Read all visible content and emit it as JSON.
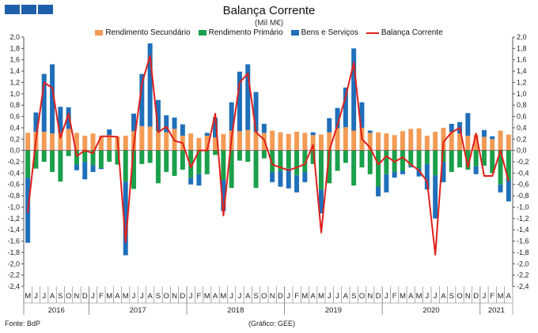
{
  "header": {
    "title": "Balança Corrente",
    "subtitle": "(Mil M€)"
  },
  "footer": {
    "source": "Fonte: BdP",
    "credit": "(Gráfico: GEE)"
  },
  "colors": {
    "secundario": "#f39b55",
    "primario": "#1aa04a",
    "bens": "#1f6fb9",
    "corrente": "#e0201b"
  },
  "chart_data": {
    "type": "bar",
    "stacked": true,
    "title": "Balança Corrente",
    "subtitle": "(Mil M€)",
    "ylim": [
      -2.4,
      2.0
    ],
    "ytick_step": 0.2,
    "legend_position": "top",
    "grid": false,
    "years": [
      {
        "label": "2016",
        "start": 0,
        "count": 8
      },
      {
        "label": "2017",
        "start": 8,
        "count": 12
      },
      {
        "label": "2018",
        "start": 20,
        "count": 12
      },
      {
        "label": "2019",
        "start": 32,
        "count": 12
      },
      {
        "label": "2020",
        "start": 44,
        "count": 12
      },
      {
        "label": "2021",
        "start": 56,
        "count": 4
      }
    ],
    "categories": [
      "M",
      "J",
      "J",
      "A",
      "S",
      "O",
      "N",
      "D",
      "J",
      "F",
      "M",
      "A",
      "M",
      "J",
      "J",
      "A",
      "S",
      "O",
      "N",
      "D",
      "J",
      "F",
      "M",
      "A",
      "M",
      "J",
      "J",
      "A",
      "S",
      "O",
      "N",
      "D",
      "J",
      "F",
      "M",
      "A",
      "M",
      "J",
      "J",
      "A",
      "S",
      "O",
      "N",
      "D",
      "J",
      "F",
      "M",
      "A",
      "M",
      "J",
      "J",
      "A",
      "S",
      "O",
      "N",
      "D",
      "J",
      "F",
      "M",
      "A"
    ],
    "series": [
      {
        "name": "Rendimento Secundário",
        "color": "#f39b55",
        "values": [
          0.31,
          0.33,
          0.33,
          0.3,
          0.31,
          0.38,
          0.31,
          0.26,
          0.3,
          0.26,
          0.27,
          0.25,
          0.26,
          0.34,
          0.43,
          0.42,
          0.34,
          0.32,
          0.38,
          0.26,
          0.3,
          0.22,
          0.26,
          0.23,
          0.29,
          0.35,
          0.34,
          0.36,
          0.33,
          0.31,
          0.35,
          0.32,
          0.29,
          0.33,
          0.31,
          0.27,
          0.28,
          0.32,
          0.39,
          0.41,
          0.35,
          0.4,
          0.31,
          0.32,
          0.3,
          0.27,
          0.34,
          0.38,
          0.39,
          0.26,
          0.33,
          0.4,
          0.33,
          0.3,
          0.26,
          0.27,
          0.24,
          0.2,
          0.35,
          0.28
        ]
      },
      {
        "name": "Rendimento Primário",
        "color": "#1aa04a",
        "values": [
          -0.48,
          -0.32,
          -0.2,
          -0.38,
          -0.55,
          -0.1,
          -0.25,
          -0.2,
          -0.26,
          -0.31,
          -0.2,
          -0.25,
          -0.55,
          -0.68,
          -0.24,
          -0.22,
          -0.58,
          -0.38,
          -0.45,
          -0.34,
          -0.48,
          -0.42,
          -0.42,
          -0.08,
          -0.52,
          -0.66,
          -0.18,
          -0.2,
          -0.66,
          -0.14,
          -0.38,
          -0.36,
          -0.32,
          -0.44,
          -0.38,
          -0.24,
          -0.69,
          -0.58,
          -0.36,
          -0.22,
          -0.62,
          -0.3,
          -0.42,
          -0.64,
          -0.42,
          -0.38,
          -0.36,
          -0.28,
          -0.32,
          -0.24,
          -0.44,
          -0.2,
          -0.38,
          -0.3,
          -0.34,
          -0.28,
          -0.27,
          -0.4,
          -0.6,
          -0.52
        ]
      },
      {
        "name": "Bens e Serviços",
        "color": "#1f6fb9",
        "values": [
          -1.15,
          0.34,
          1.02,
          1.22,
          0.46,
          0.38,
          -0.1,
          -0.31,
          -0.12,
          -0.02,
          0.1,
          0.0,
          -1.3,
          0.31,
          0.92,
          1.47,
          0.55,
          0.3,
          0.2,
          0.2,
          -0.12,
          -0.2,
          0.05,
          0.35,
          -0.55,
          0.5,
          1.05,
          1.16,
          0.7,
          0.16,
          -0.18,
          -0.28,
          -0.35,
          -0.3,
          -0.18,
          0.05,
          -0.42,
          0.25,
          0.36,
          0.7,
          1.45,
          0.45,
          0.04,
          -0.17,
          -0.32,
          -0.1,
          -0.06,
          -0.02,
          -0.14,
          -0.45,
          -0.76,
          -0.36,
          0.14,
          0.2,
          0.4,
          -0.14,
          0.12,
          0.05,
          -0.14,
          -0.38
        ]
      }
    ],
    "lines": [
      {
        "name": "Balança Corrente",
        "color": "#e0201b",
        "values": [
          -1.1,
          0.2,
          1.2,
          1.1,
          0.22,
          0.65,
          -0.1,
          0.0,
          -0.05,
          0.25,
          0.25,
          0.24,
          -1.62,
          0.1,
          1.18,
          1.67,
          0.32,
          0.42,
          0.17,
          0.13,
          -0.3,
          0.0,
          0.0,
          0.65,
          -1.15,
          0.22,
          1.2,
          1.36,
          0.32,
          0.19,
          -0.25,
          -0.3,
          -0.35,
          -0.3,
          -0.24,
          0.1,
          -1.45,
          0.0,
          0.45,
          0.95,
          1.55,
          0.2,
          0.05,
          -0.25,
          -0.1,
          -0.2,
          -0.12,
          -0.25,
          -0.35,
          -0.55,
          -1.84,
          0.15,
          0.32,
          0.4,
          -0.3,
          0.3,
          -0.45,
          -0.45,
          0.0,
          -0.55
        ]
      }
    ]
  }
}
